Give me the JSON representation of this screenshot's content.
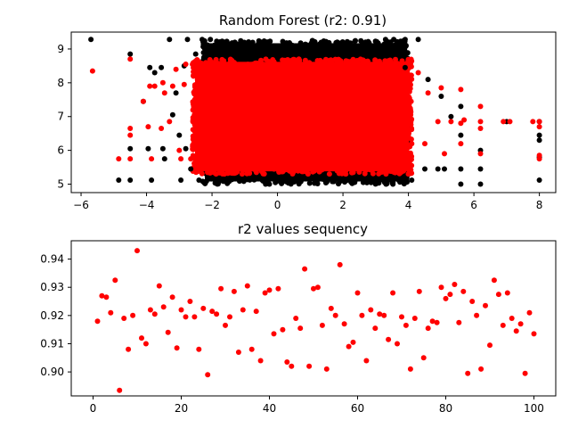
{
  "chart_data": [
    {
      "type": "scatter",
      "title": "Random Forest (r2: 0.91)",
      "xlim": [
        -6.3,
        8.5
      ],
      "ylim": [
        4.75,
        9.5
      ],
      "xticks": [
        -6,
        -4,
        -2,
        0,
        2,
        4,
        6,
        8
      ],
      "yticks": [
        5,
        6,
        7,
        8,
        9
      ],
      "grid": false,
      "series": [
        {
          "color": "#000000",
          "points": [
            [
              -5.7,
              9.28
            ],
            [
              -4.85,
              5.12
            ],
            [
              -4.5,
              8.85
            ],
            [
              -4.5,
              6.05
            ],
            [
              -4.5,
              5.12
            ],
            [
              -4.1,
              7.45
            ],
            [
              -3.95,
              6.05
            ],
            [
              -3.9,
              8.45
            ],
            [
              -3.85,
              5.12
            ],
            [
              -3.75,
              8.3
            ],
            [
              -3.55,
              8.45
            ],
            [
              -3.5,
              6.05
            ],
            [
              -3.45,
              5.75
            ],
            [
              -3.3,
              9.28
            ],
            [
              -3.2,
              7.05
            ],
            [
              -3.1,
              7.7
            ],
            [
              -3.0,
              6.45
            ],
            [
              -2.95,
              5.12
            ],
            [
              -2.85,
              8.5
            ],
            [
              -2.8,
              6.05
            ],
            [
              -2.75,
              9.28
            ],
            [
              -2.65,
              5.45
            ],
            [
              -2.5,
              8.85
            ],
            [
              -2.4,
              5.12
            ],
            [
              -2.3,
              9.28
            ],
            [
              -2.05,
              9.28
            ],
            [
              3.3,
              9.28
            ],
            [
              3.55,
              9.28
            ],
            [
              3.7,
              5.12
            ],
            [
              3.9,
              9.28
            ],
            [
              4.3,
              9.28
            ],
            [
              3.9,
              8.45
            ],
            [
              4.1,
              5.12
            ],
            [
              4.5,
              5.45
            ],
            [
              4.6,
              8.1
            ],
            [
              4.9,
              5.45
            ],
            [
              5.0,
              7.6
            ],
            [
              5.1,
              5.45
            ],
            [
              5.3,
              7.0
            ],
            [
              5.6,
              7.3
            ],
            [
              5.6,
              6.45
            ],
            [
              5.6,
              5.45
            ],
            [
              5.6,
              5.0
            ],
            [
              6.2,
              5.45
            ],
            [
              6.2,
              6.0
            ],
            [
              6.2,
              5.0
            ],
            [
              7.0,
              6.85
            ],
            [
              8.0,
              5.12
            ],
            [
              8.0,
              6.85
            ],
            [
              8.0,
              6.45
            ],
            [
              8.0,
              6.3
            ],
            [
              8.0,
              5.8
            ]
          ]
        },
        {
          "color": "#ff0000",
          "points": [
            [
              -5.65,
              8.35
            ],
            [
              -4.5,
              8.7
            ],
            [
              -4.5,
              6.65
            ],
            [
              -4.5,
              6.45
            ],
            [
              -4.5,
              5.75
            ],
            [
              -4.85,
              5.75
            ],
            [
              -4.1,
              7.45
            ],
            [
              -3.95,
              6.7
            ],
            [
              -3.9,
              7.9
            ],
            [
              -3.85,
              5.75
            ],
            [
              -3.75,
              7.9
            ],
            [
              -3.55,
              6.65
            ],
            [
              -3.5,
              8.0
            ],
            [
              -3.45,
              7.7
            ],
            [
              -3.3,
              6.85
            ],
            [
              -3.2,
              7.9
            ],
            [
              -3.1,
              8.4
            ],
            [
              -3.0,
              6.0
            ],
            [
              -2.95,
              5.75
            ],
            [
              -2.85,
              7.95
            ],
            [
              -2.8,
              8.55
            ],
            [
              -2.65,
              5.75
            ],
            [
              -2.55,
              8.45
            ],
            [
              -2.4,
              5.75
            ],
            [
              3.4,
              5.75
            ],
            [
              3.6,
              8.3
            ],
            [
              3.9,
              5.9
            ],
            [
              4.1,
              6.2
            ],
            [
              4.3,
              8.3
            ],
            [
              4.5,
              6.2
            ],
            [
              4.6,
              7.7
            ],
            [
              4.9,
              6.85
            ],
            [
              5.0,
              7.85
            ],
            [
              5.1,
              5.9
            ],
            [
              5.3,
              6.85
            ],
            [
              5.6,
              7.8
            ],
            [
              5.6,
              6.8
            ],
            [
              5.6,
              6.2
            ],
            [
              5.7,
              6.9
            ],
            [
              6.2,
              7.3
            ],
            [
              6.2,
              6.85
            ],
            [
              6.2,
              6.65
            ],
            [
              6.2,
              5.9
            ],
            [
              6.9,
              6.85
            ],
            [
              7.1,
              6.85
            ],
            [
              7.8,
              6.85
            ],
            [
              8.0,
              6.85
            ],
            [
              8.0,
              6.7
            ],
            [
              8.0,
              5.75
            ],
            [
              8.0,
              5.85
            ]
          ]
        }
      ],
      "dense_regions": [
        {
          "color": "#000000",
          "x": [
            -2.3,
            4.0
          ],
          "y": [
            5.0,
            9.25
          ]
        },
        {
          "color": "#ff0000",
          "x": [
            -2.6,
            4.1
          ],
          "y": [
            5.3,
            8.7
          ]
        }
      ]
    },
    {
      "type": "scatter",
      "title": "r2 values sequency",
      "xlim": [
        -4.95,
        104.95
      ],
      "ylim": [
        0.8915,
        0.9465
      ],
      "xticks": [
        0,
        20,
        40,
        60,
        80,
        100
      ],
      "yticks": [
        0.9,
        0.91,
        0.92,
        0.93,
        0.94
      ],
      "ytick_labels": [
        "0.90",
        "0.91",
        "0.92",
        "0.93",
        "0.94"
      ],
      "grid": false,
      "color": "#ff0000",
      "x": [
        1,
        2,
        3,
        4,
        5,
        6,
        7,
        8,
        9,
        10,
        11,
        12,
        13,
        14,
        15,
        16,
        17,
        18,
        19,
        20,
        21,
        22,
        23,
        24,
        25,
        26,
        27,
        28,
        29,
        30,
        31,
        32,
        33,
        34,
        35,
        36,
        37,
        38,
        39,
        40,
        41,
        42,
        43,
        44,
        45,
        46,
        47,
        48,
        49,
        50,
        51,
        52,
        53,
        54,
        55,
        56,
        57,
        58,
        59,
        60,
        61,
        62,
        63,
        64,
        65,
        66,
        67,
        68,
        69,
        70,
        71,
        72,
        73,
        74,
        75,
        76,
        77,
        78,
        79,
        80,
        81,
        82,
        83,
        84,
        85,
        86,
        87,
        88,
        89,
        90,
        91,
        92,
        93,
        94,
        95,
        96,
        97,
        98,
        99,
        100
      ],
      "values": [
        0.918,
        0.927,
        0.9265,
        0.921,
        0.9325,
        0.8935,
        0.919,
        0.908,
        0.92,
        0.943,
        0.912,
        0.91,
        0.922,
        0.9205,
        0.9305,
        0.923,
        0.914,
        0.9265,
        0.9085,
        0.922,
        0.9195,
        0.925,
        0.9195,
        0.908,
        0.9225,
        0.899,
        0.9215,
        0.9205,
        0.9295,
        0.9165,
        0.9195,
        0.9285,
        0.907,
        0.922,
        0.9305,
        0.908,
        0.9215,
        0.904,
        0.928,
        0.929,
        0.9135,
        0.9295,
        0.915,
        0.9035,
        0.902,
        0.919,
        0.9155,
        0.9365,
        0.902,
        0.9295,
        0.93,
        0.9165,
        0.901,
        0.9225,
        0.92,
        0.938,
        0.917,
        0.909,
        0.9105,
        0.928,
        0.92,
        0.904,
        0.922,
        0.9155,
        0.9205,
        0.92,
        0.9115,
        0.928,
        0.91,
        0.9195,
        0.9165,
        0.901,
        0.919,
        0.9285,
        0.905,
        0.9155,
        0.918,
        0.9175,
        0.93,
        0.926,
        0.9275,
        0.931,
        0.9175,
        0.9285,
        0.8995,
        0.925,
        0.92,
        0.901,
        0.9235,
        0.9095,
        0.9325,
        0.9275,
        0.9165,
        0.928,
        0.919,
        0.9145,
        0.917,
        0.8995,
        0.921,
        0.9135
      ]
    }
  ]
}
